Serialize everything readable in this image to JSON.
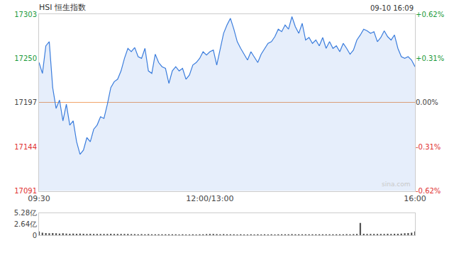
{
  "chart_data": [
    {
      "type": "area",
      "title": "HSI 恒生指数",
      "annotations": [
        "09-10 16:09",
        "sina.com"
      ],
      "color": "#3b7ddd",
      "x": [
        0,
        3,
        6,
        9,
        12,
        15,
        18,
        21,
        24,
        27,
        30,
        33,
        36,
        39,
        42,
        45,
        48,
        51,
        54,
        57,
        60,
        63,
        66,
        69,
        72,
        75,
        78,
        81,
        84,
        87,
        90,
        93,
        96,
        99,
        102,
        105,
        108,
        111,
        114,
        117,
        120,
        123,
        126,
        129,
        132,
        135,
        138,
        141,
        144,
        147,
        150,
        153,
        156,
        159,
        162,
        165,
        168,
        171,
        174,
        177,
        180,
        183,
        186,
        189,
        192,
        195,
        198,
        201,
        204,
        207,
        210,
        213,
        216,
        219,
        222,
        225,
        228,
        231,
        234,
        237,
        240,
        243,
        246,
        249,
        252,
        255,
        258,
        261,
        264,
        267,
        270,
        273,
        276,
        279,
        282,
        285,
        288,
        291,
        294,
        297,
        300,
        303,
        306,
        309,
        312,
        315,
        318,
        321,
        324,
        327,
        330
      ],
      "values": [
        17245,
        17232,
        17265,
        17270,
        17215,
        17190,
        17200,
        17175,
        17195,
        17170,
        17175,
        17150,
        17135,
        17140,
        17155,
        17150,
        17165,
        17170,
        17180,
        17178,
        17195,
        17215,
        17222,
        17225,
        17235,
        17250,
        17262,
        17258,
        17263,
        17252,
        17250,
        17262,
        17235,
        17232,
        17255,
        17245,
        17240,
        17238,
        17220,
        17235,
        17240,
        17235,
        17238,
        17225,
        17230,
        17242,
        17245,
        17250,
        17258,
        17254,
        17258,
        17260,
        17242,
        17262,
        17280,
        17290,
        17298,
        17285,
        17270,
        17262,
        17255,
        17248,
        17258,
        17252,
        17245,
        17255,
        17262,
        17268,
        17270,
        17276,
        17285,
        17282,
        17290,
        17285,
        17300,
        17288,
        17280,
        17292,
        17272,
        17275,
        17268,
        17272,
        17265,
        17275,
        17262,
        17270,
        17262,
        17265,
        17258,
        17268,
        17262,
        17255,
        17260,
        17272,
        17278,
        17285,
        17283,
        17280,
        17282,
        17270,
        17275,
        17283,
        17276,
        17272,
        17278,
        17262,
        17252,
        17250,
        17252,
        17248,
        17240
      ],
      "xlim": [
        0,
        330
      ],
      "xticks": [
        {
          "value": 0,
          "label": "09:30"
        },
        {
          "value": 150,
          "label": "12:00/13:00"
        },
        {
          "value": 330,
          "label": "16:00"
        }
      ],
      "ylim": [
        17091,
        17303
      ],
      "yticks": [
        17091,
        17144,
        17197,
        17250,
        17303
      ],
      "y2lim": [
        -0.62,
        0.62
      ],
      "y2ticks": [
        {
          "value": -0.62,
          "label": "-0.62%"
        },
        {
          "value": -0.31,
          "label": "-0.31%"
        },
        {
          "value": 0,
          "label": "0.00%"
        },
        {
          "value": 0.31,
          "label": "+0.31%"
        },
        {
          "value": 0.62,
          "label": "+0.62%"
        }
      ],
      "grid": false
    },
    {
      "type": "bar",
      "color": "#555555",
      "x": [
        0,
        3,
        6,
        9,
        12,
        15,
        18,
        21,
        24,
        27,
        30,
        33,
        36,
        39,
        42,
        45,
        48,
        51,
        54,
        57,
        60,
        63,
        66,
        69,
        72,
        75,
        78,
        81,
        84,
        87,
        90,
        93,
        96,
        99,
        102,
        105,
        108,
        111,
        114,
        117,
        120,
        123,
        126,
        129,
        132,
        135,
        138,
        141,
        144,
        147,
        150,
        153,
        156,
        159,
        162,
        165,
        168,
        171,
        174,
        177,
        180,
        183,
        186,
        189,
        192,
        195,
        198,
        201,
        204,
        207,
        210,
        213,
        216,
        219,
        222,
        225,
        228,
        231,
        234,
        237,
        240,
        243,
        246,
        249,
        252,
        255,
        258,
        261,
        264,
        267,
        270,
        273,
        276,
        279,
        282,
        285,
        288,
        291,
        294,
        297,
        300,
        303,
        306,
        309,
        312,
        315,
        318,
        321,
        324,
        327,
        330
      ],
      "values": [
        0.9,
        0.6,
        0.5,
        0.45,
        0.5,
        0.45,
        0.4,
        0.45,
        0.4,
        0.35,
        0.4,
        0.35,
        0.4,
        0.35,
        0.3,
        0.35,
        0.3,
        0.3,
        0.3,
        0.28,
        0.3,
        0.35,
        0.3,
        0.28,
        0.3,
        0.3,
        0.28,
        0.25,
        0.25,
        0.22,
        0.25,
        0.22,
        0.25,
        0.22,
        0.2,
        0.2,
        0.22,
        0.2,
        0.22,
        0.2,
        0.2,
        0.18,
        0.2,
        0.18,
        0.18,
        0.2,
        0.18,
        0.2,
        0.22,
        0.25,
        0.3,
        0.28,
        0.25,
        0.22,
        0.25,
        0.22,
        0.2,
        0.2,
        0.18,
        0.2,
        0.18,
        0.18,
        0.2,
        0.18,
        0.2,
        0.18,
        0.2,
        0.18,
        0.2,
        0.18,
        0.2,
        0.2,
        0.22,
        0.2,
        0.25,
        0.22,
        0.2,
        0.22,
        0.2,
        0.2,
        0.22,
        0.2,
        0.22,
        0.2,
        0.22,
        0.2,
        0.22,
        0.2,
        0.22,
        0.2,
        0.25,
        0.22,
        0.25,
        0.3,
        2.9,
        0.35,
        0.3,
        0.28,
        0.3,
        0.28,
        0.3,
        0.3,
        0.32,
        0.3,
        0.35,
        0.35,
        0.4,
        0.45,
        0.5,
        0.6,
        0.9
      ],
      "xlim": [
        0,
        330
      ],
      "ylim": [
        0,
        5.28
      ],
      "yticks": [
        0,
        {
          "value": 2.64,
          "label": "2.64亿"
        },
        {
          "value": 5.28,
          "label": "5.28亿"
        }
      ],
      "tick_labels": "y",
      "grid": false
    }
  ]
}
